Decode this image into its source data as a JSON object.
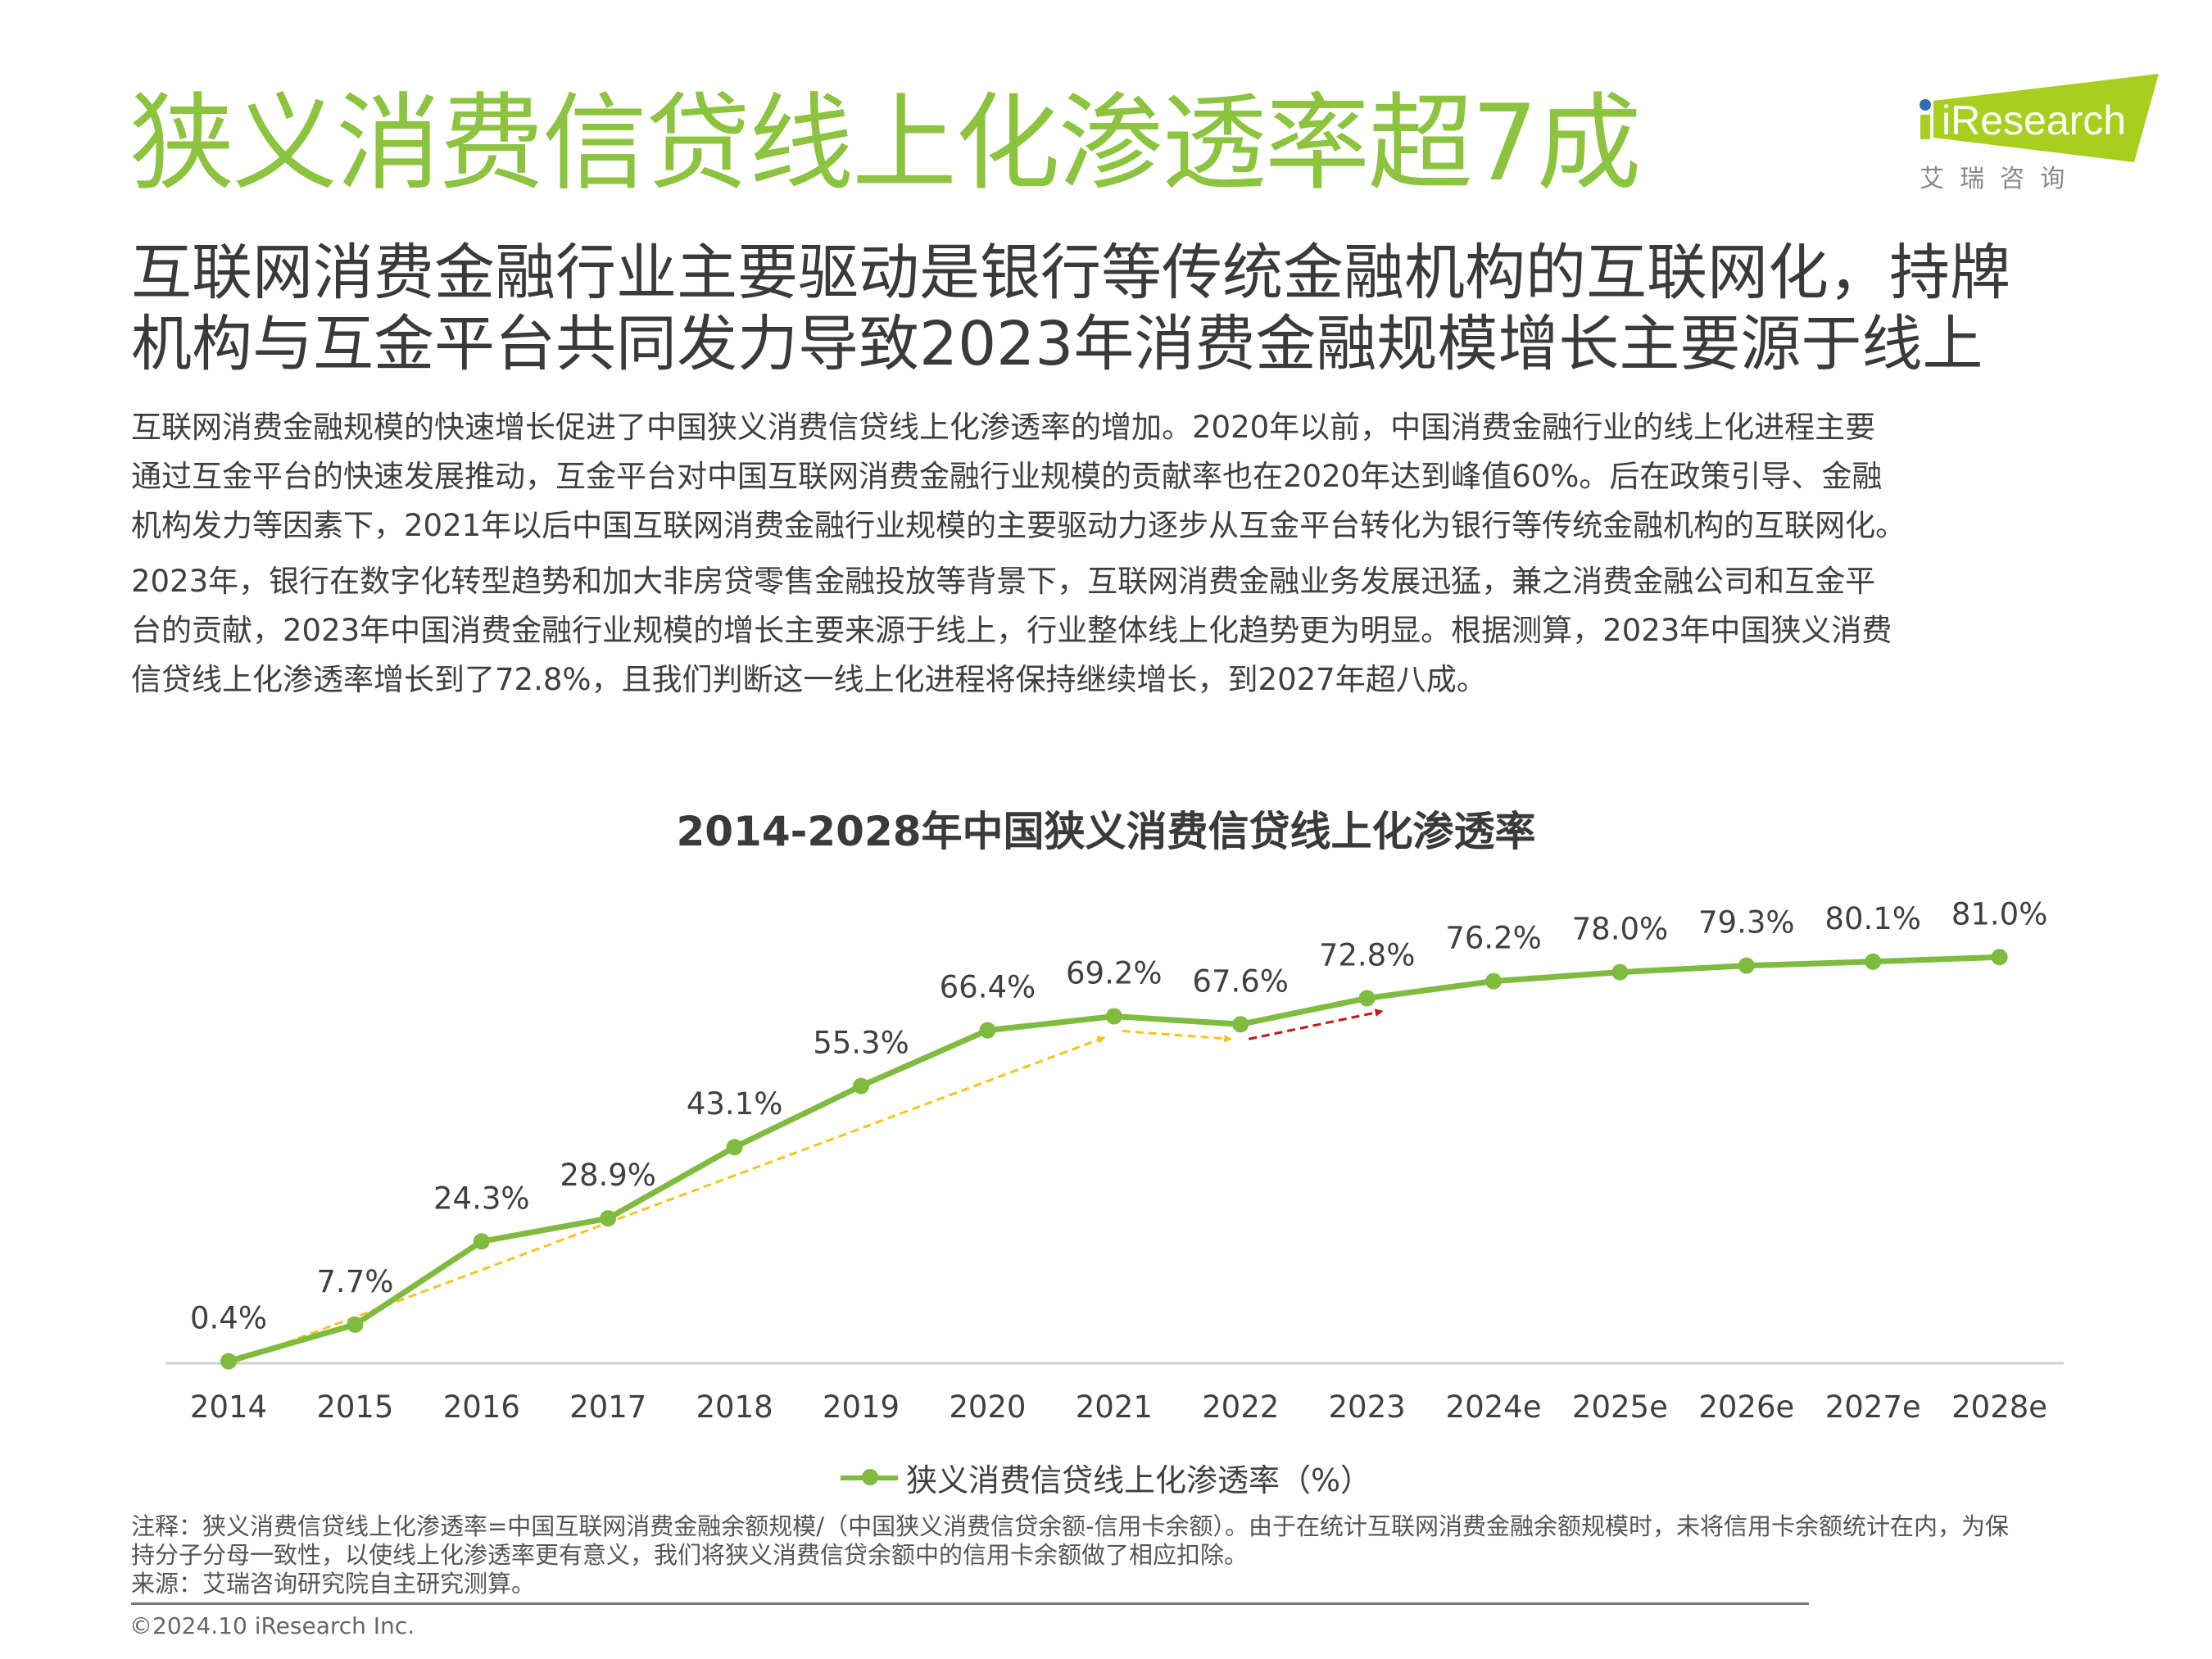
{
  "header": {
    "title": "狭义消费信贷线上化渗透率超7成",
    "subtitle_lines": [
      "互联网消费金融行业主要驱动是银行等传统金融机构的互联网化，持牌",
      "机构与互金平台共同发力导致2023年消费金融规模增长主要源于线上"
    ]
  },
  "logo": {
    "brand": "iResearch",
    "cn": "艾  瑞  咨  询",
    "colors": {
      "green": "#a8cf1e",
      "dot": "#2f6db5"
    }
  },
  "body": {
    "paragraph1": [
      "互联网消费金融规模的快速增长促进了中国狭义消费信贷线上化渗透率的增加。2020年以前，中国消费金融行业的线上化进程主要",
      "通过互金平台的快速发展推动，互金平台对中国互联网消费金融行业规模的贡献率也在2020年达到峰值60%。后在政策引导、金融",
      "机构发力等因素下，2021年以后中国互联网消费金融行业规模的主要驱动力逐步从互金平台转化为银行等传统金融机构的互联网化。"
    ],
    "paragraph2": [
      "2023年，银行在数字化转型趋势和加大非房贷零售金融投放等背景下，互联网消费金融业务发展迅猛，兼之消费金融公司和互金平",
      "台的贡献，2023年中国消费金融行业规模的增长主要来源于线上，行业整体线上化趋势更为明显。根据测算，2023年中国狭义消费",
      "信贷线上化渗透率增长到了72.8%，且我们判断这一线上化进程将保持继续增长，到2027年超八成。"
    ]
  },
  "chart_data": {
    "type": "line",
    "title": "2014-2028年中国狭义消费信贷线上化渗透率",
    "categories": [
      "2014",
      "2015",
      "2016",
      "2017",
      "2018",
      "2019",
      "2020",
      "2021",
      "2022",
      "2023",
      "2024e",
      "2025e",
      "2026e",
      "2027e",
      "2028e"
    ],
    "series": [
      {
        "name": "狭义消费信贷线上化渗透率（%）",
        "values": [
          0.4,
          7.7,
          24.3,
          28.9,
          43.1,
          55.3,
          66.4,
          69.2,
          67.6,
          72.8,
          76.2,
          78.0,
          79.3,
          80.1,
          81.0
        ],
        "color": "#7fbb3f"
      }
    ],
    "data_labels": [
      "0.4%",
      "7.7%",
      "24.3%",
      "28.9%",
      "43.1%",
      "55.3%",
      "66.4%",
      "69.2%",
      "67.6%",
      "72.8%",
      "76.2%",
      "78.0%",
      "79.3%",
      "80.1%",
      "81.0%"
    ],
    "annotations": [
      {
        "type": "dashed-arrow",
        "from": "2014",
        "to": "2021",
        "color": "#f5c518"
      },
      {
        "type": "dashed-arrow",
        "from": "2021",
        "to": "2022",
        "color": "#f5c518"
      },
      {
        "type": "dashed-arrow",
        "from": "2022",
        "to": "2023",
        "color": "#c0171c"
      }
    ],
    "legend": "bottom",
    "grid": false,
    "ylim": [
      0,
      100
    ]
  },
  "notes": {
    "lines": [
      "注释：狭义消费信贷线上化渗透率=中国互联网消费金融余额规模/（中国狭义消费信贷余额-信用卡余额）。由于在统计互联网消费金融余额规模时，未将信用卡余额统计在内，为保",
      "持分子分母一致性，以使线上化渗透率更有意义，我们将狭义消费信贷余额中的信用卡余额做了相应扣除。",
      "来源：艾瑞咨询研究院自主研究测算。"
    ],
    "copyright": "©2024.10 iResearch Inc."
  }
}
